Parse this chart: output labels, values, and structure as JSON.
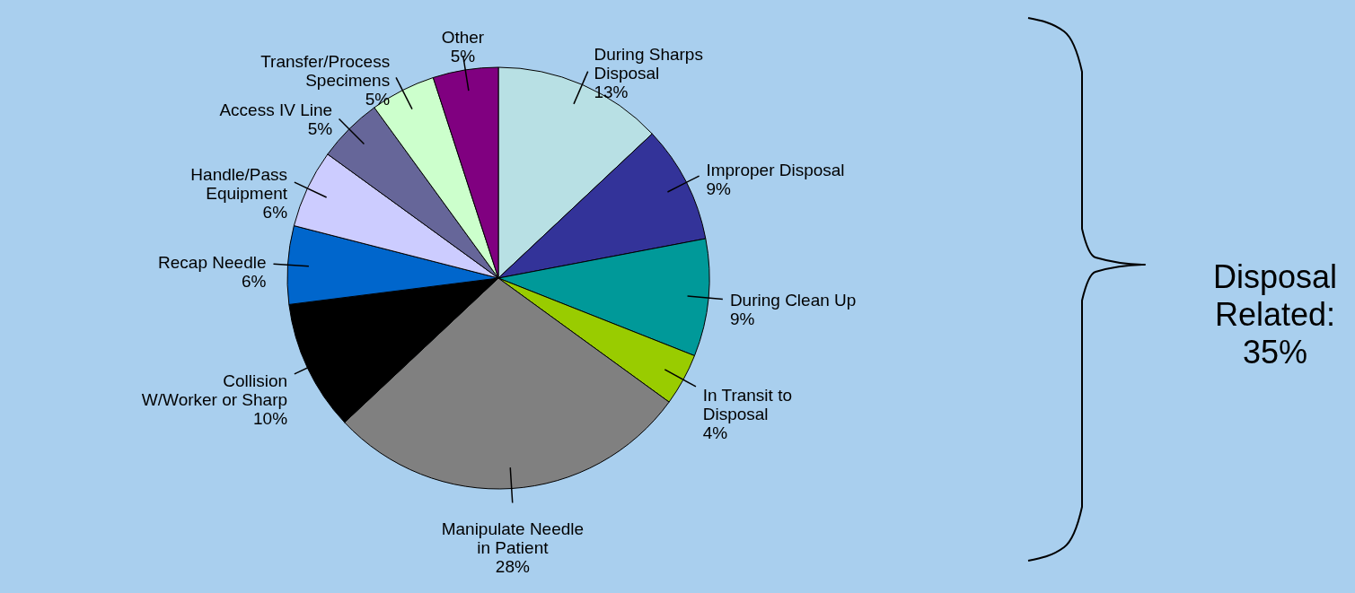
{
  "chart_data": {
    "type": "pie",
    "categories": [
      "During Sharps Disposal",
      "Improper Disposal",
      "During Clean Up",
      "In Transit to Disposal",
      "Manipulate Needle in Patient",
      "Collision W/Worker or Sharp",
      "Recap Needle",
      "Handle/Pass Equipment",
      "Access IV Line",
      "Transfer/Process Specimens",
      "Other"
    ],
    "values": [
      13,
      9,
      9,
      4,
      28,
      10,
      6,
      6,
      5,
      5,
      5
    ],
    "value_labels": [
      "13%",
      "9%",
      "9%",
      "4%",
      "28%",
      "10%",
      "6%",
      "6%",
      "5%",
      "5%",
      "5%"
    ],
    "colors": [
      "#b8e0e4",
      "#333399",
      "#009999",
      "#99cc00",
      "#808080",
      "#000000",
      "#0066cc",
      "#ccccff",
      "#666699",
      "#ccffcc",
      "#800080"
    ],
    "annotations": [
      "Disposal Related: 35%"
    ]
  }
}
